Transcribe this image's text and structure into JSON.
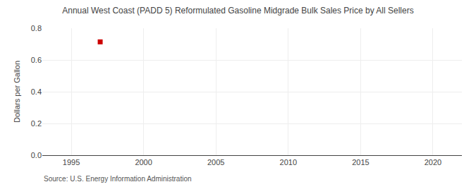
{
  "chart_data": {
    "type": "scatter",
    "title": "Annual West Coast (PADD 5) Reformulated Gasoline Midgrade Bulk Sales Price by All Sellers",
    "ylabel": "Dollars per Gallon",
    "annotations": [
      "Source: U.S. Energy Information Administration"
    ],
    "x": [
      1997
    ],
    "values": [
      0.714
    ],
    "color": "#cc0000",
    "marker": "square",
    "xlim": [
      1993,
      2022
    ],
    "xticks": [
      1995,
      2000,
      2005,
      2010,
      2015,
      2020
    ],
    "ylim": [
      0.0,
      0.8
    ],
    "yticks": [
      {
        "value": 0.0,
        "label": "0.0"
      },
      0.2,
      0.4,
      0.6,
      0.8
    ],
    "grid": true
  }
}
